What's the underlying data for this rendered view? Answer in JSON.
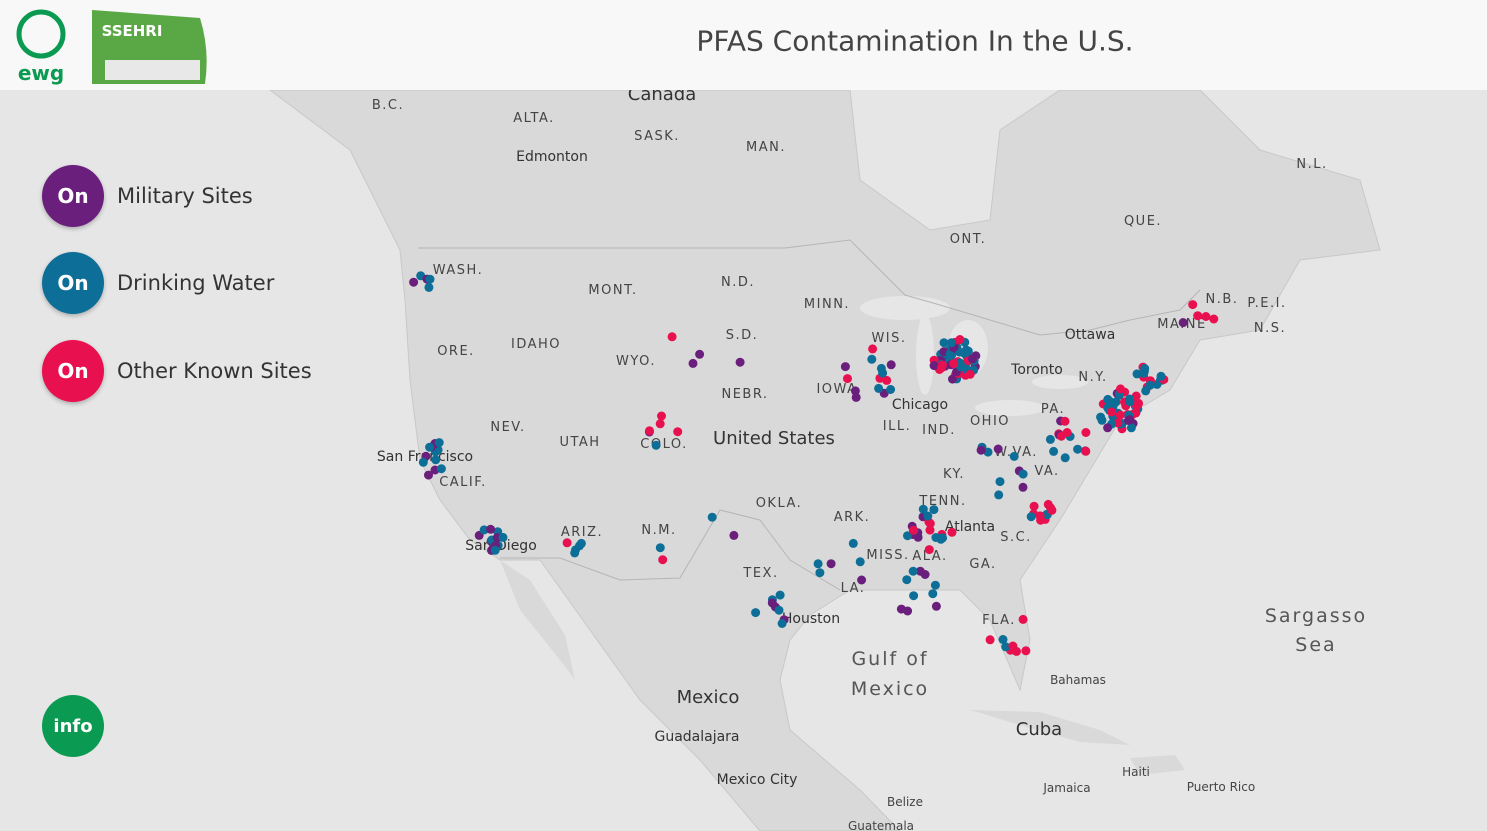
{
  "header": {
    "title": "PFAS Contamination In the U.S.",
    "logos": [
      "ewg",
      "SSEHRI"
    ]
  },
  "toggles": [
    {
      "state": "On",
      "label": "Military Sites"
    },
    {
      "state": "On",
      "label": "Drinking Water"
    },
    {
      "state": "On",
      "label": "Other Known Sites"
    }
  ],
  "info_button": "info",
  "map_labels": [
    "Canada",
    "B.C.",
    "ALTA.",
    "SASK.",
    "Edmonton",
    "MAN.",
    "N.L.",
    "QUE.",
    "ONT.",
    "WASH.",
    "MONT.",
    "N.D.",
    "MINN.",
    "N.B.",
    "P.E.I.",
    "N.S.",
    "MAINE",
    "Ottawa",
    "S.D.",
    "WIS.",
    "IDAHO",
    "ORE.",
    "WYO.",
    "Toronto",
    "N.Y.",
    "IOWA",
    "NEBR.",
    "Chicago",
    "PA.",
    "OHIO",
    "NEV.",
    "ILL.",
    "IND.",
    "United States",
    "UTAH",
    "COLO.",
    "San Francisco",
    "W.VA.",
    "KY.",
    "VA.",
    "CALIF.",
    "TENN.",
    "OKLA.",
    "ARK.",
    "ARIZ.",
    "N.M.",
    "Atlanta",
    "S.C.",
    "San Diego",
    "MISS.",
    "ALA.",
    "GA.",
    "TEX.",
    "LA.",
    "Houston",
    "FLA.",
    "Sargasso",
    "Sea",
    "Gulf of",
    "Mexico",
    "Bahamas",
    "Mexico",
    "Cuba",
    "Guadalajara",
    "Haiti",
    "Mexico City",
    "Jamaica",
    "Puerto Rico",
    "Belize",
    "Guatemala"
  ]
}
